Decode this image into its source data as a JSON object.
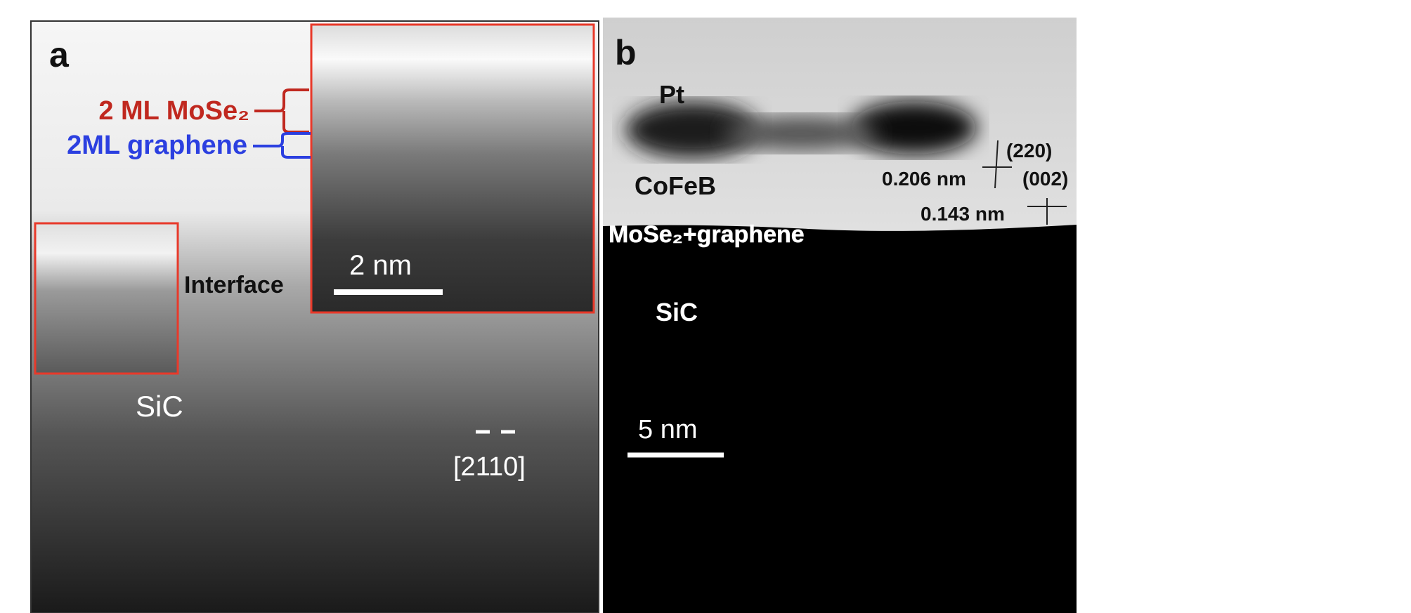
{
  "panel_a": {
    "label": "a",
    "layer_top": "2 ML MoSe₂",
    "layer_bottom": "2ML graphene",
    "interface": "Interface",
    "substrate": "SiC",
    "scale_bar": "2 nm",
    "direction": "[2110]"
  },
  "panel_b": {
    "label": "b",
    "top_layer": "Pt",
    "middle_layer": "CoFeB",
    "interface_layer": "MoSe₂+graphene",
    "substrate": "SiC",
    "plane_1": "(220)",
    "spacing_1": "0.206 nm",
    "plane_2": "(002)",
    "spacing_2": "0.143 nm",
    "scale_bar": "5 nm"
  }
}
